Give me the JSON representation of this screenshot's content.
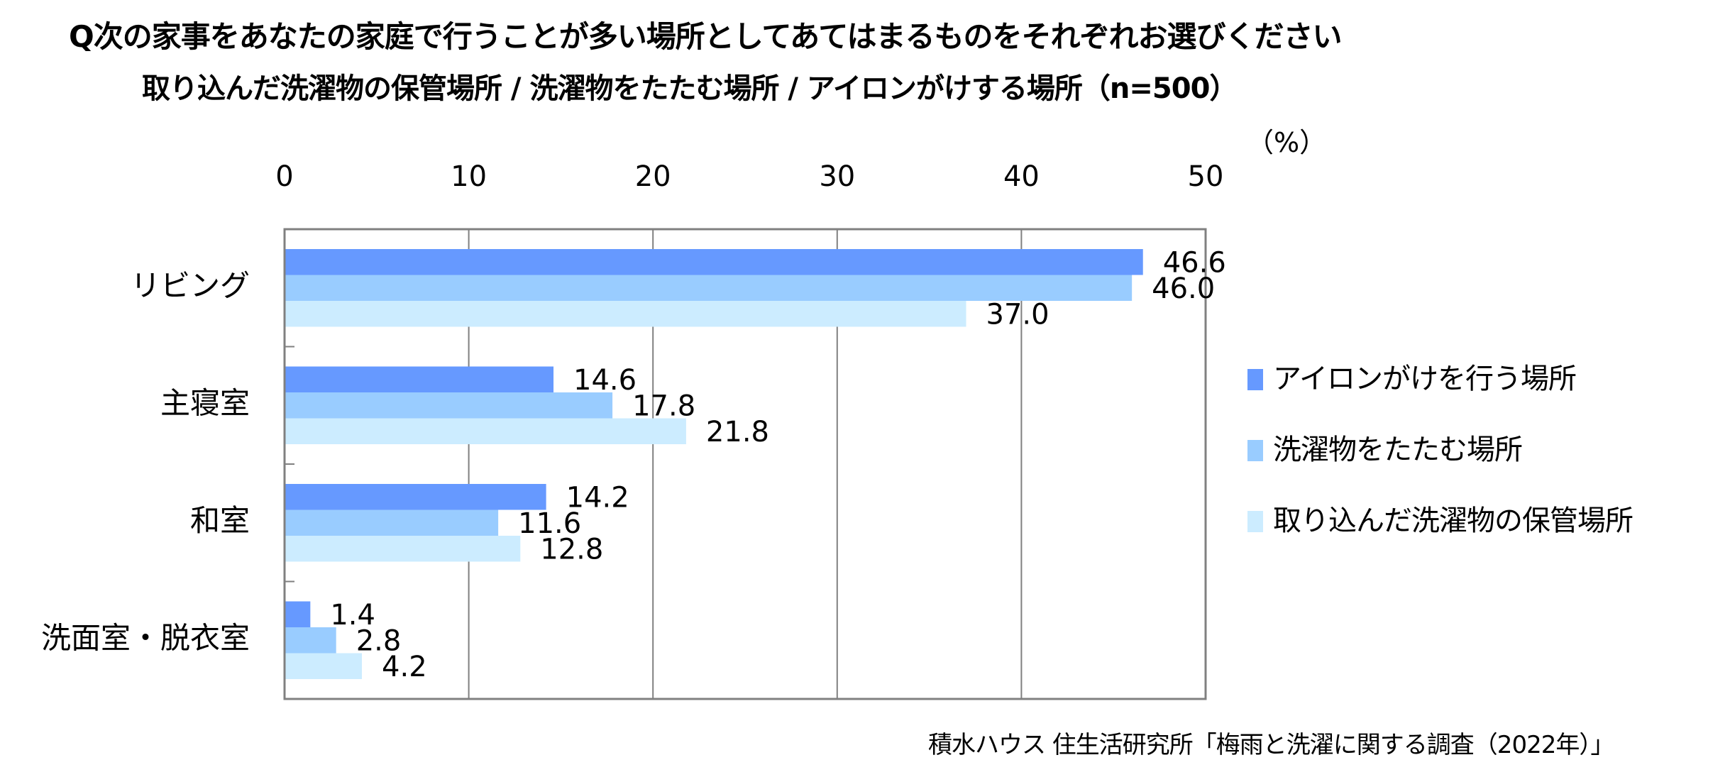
{
  "title": {
    "line1": "Q次の家事をあなたの家庭で行うことが多い場所としてあてはまるものをそれぞれお選びください",
    "line2": "取り込んだ洗濯物の保管場所 / 洗濯物をたたむ場所 / アイロンがけする場所（n=500）"
  },
  "unit_label": "（%）",
  "source": "積水ハウス 住生活研究所「梅雨と洗濯に関する調査（2022年）」",
  "colors": {
    "series1": "#6699FF",
    "series2": "#99CCFF",
    "series3": "#CCECFF",
    "axis": "#808080",
    "grid": "#808080"
  },
  "legend": {
    "items": [
      {
        "label": "アイロンがけを行う場所"
      },
      {
        "label": "洗濯物をたたむ場所"
      },
      {
        "label": "取り込んだ洗濯物の保管場所"
      }
    ]
  },
  "chart_data": {
    "type": "bar",
    "orientation": "horizontal",
    "title": "Q次の家事をあなたの家庭で行うことが多い場所としてあてはまるものをそれぞれお選びください",
    "subtitle": "取り込んだ洗濯物の保管場所 / 洗濯物をたたむ場所 / アイロンがけする場所（n=500）",
    "xlabel": "（%）",
    "ylabel": "",
    "xlim": [
      0,
      50
    ],
    "xticks": [
      "0",
      "10",
      "20",
      "30",
      "40",
      "50"
    ],
    "grid": true,
    "legend_position": "right",
    "categories": [
      "リビング",
      "主寝室",
      "和室",
      "洗面室・脱衣室"
    ],
    "series": [
      {
        "name": "アイロンがけを行う場所",
        "values": [
          46.6,
          14.6,
          14.2,
          1.4
        ],
        "labels": [
          "46.6",
          "14.6",
          "14.2",
          "1.4"
        ]
      },
      {
        "name": "洗濯物をたたむ場所",
        "values": [
          46.0,
          17.8,
          11.6,
          2.8
        ],
        "labels": [
          "46.0",
          "17.8",
          "11.6",
          "2.8"
        ]
      },
      {
        "name": "取り込んだ洗濯物の保管場所",
        "values": [
          37.0,
          21.8,
          12.8,
          4.2
        ],
        "labels": [
          "37.0",
          "21.8",
          "12.8",
          "4.2"
        ]
      }
    ]
  }
}
